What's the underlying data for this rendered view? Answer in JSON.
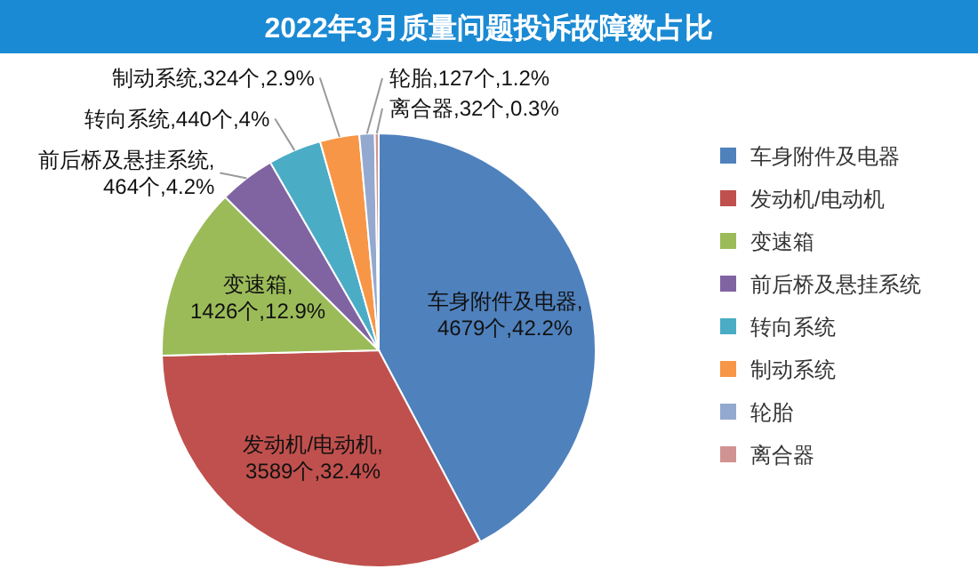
{
  "chart_data": {
    "type": "pie",
    "title": "2022年3月质量问题投诉故障数占比",
    "categories": [
      "车身附件及电器",
      "发动机/电动机",
      "变速箱",
      "前后桥及悬挂系统",
      "转向系统",
      "制动系统",
      "轮胎",
      "离合器"
    ],
    "values": [
      4679,
      3589,
      1426,
      464,
      440,
      324,
      127,
      32
    ],
    "colors": [
      "#4f81bd",
      "#c0504d",
      "#9bbb59",
      "#8064a2",
      "#4bacc6",
      "#f79646",
      "#93a9cf",
      "#d19392"
    ],
    "value_labels": [
      "车身附件及电器,\n4679个,42.2%",
      "发动机/电动机,\n3589个,32.4%",
      "变速箱,\n1426个,12.9%",
      "前后桥及悬挂系统,\n464个,4.2%",
      "转向系统,440个,4%",
      "制动系统,324个,2.9%",
      "轮胎,127个,1.2%",
      "离合器,32个,0.3%"
    ],
    "legend": "right"
  }
}
